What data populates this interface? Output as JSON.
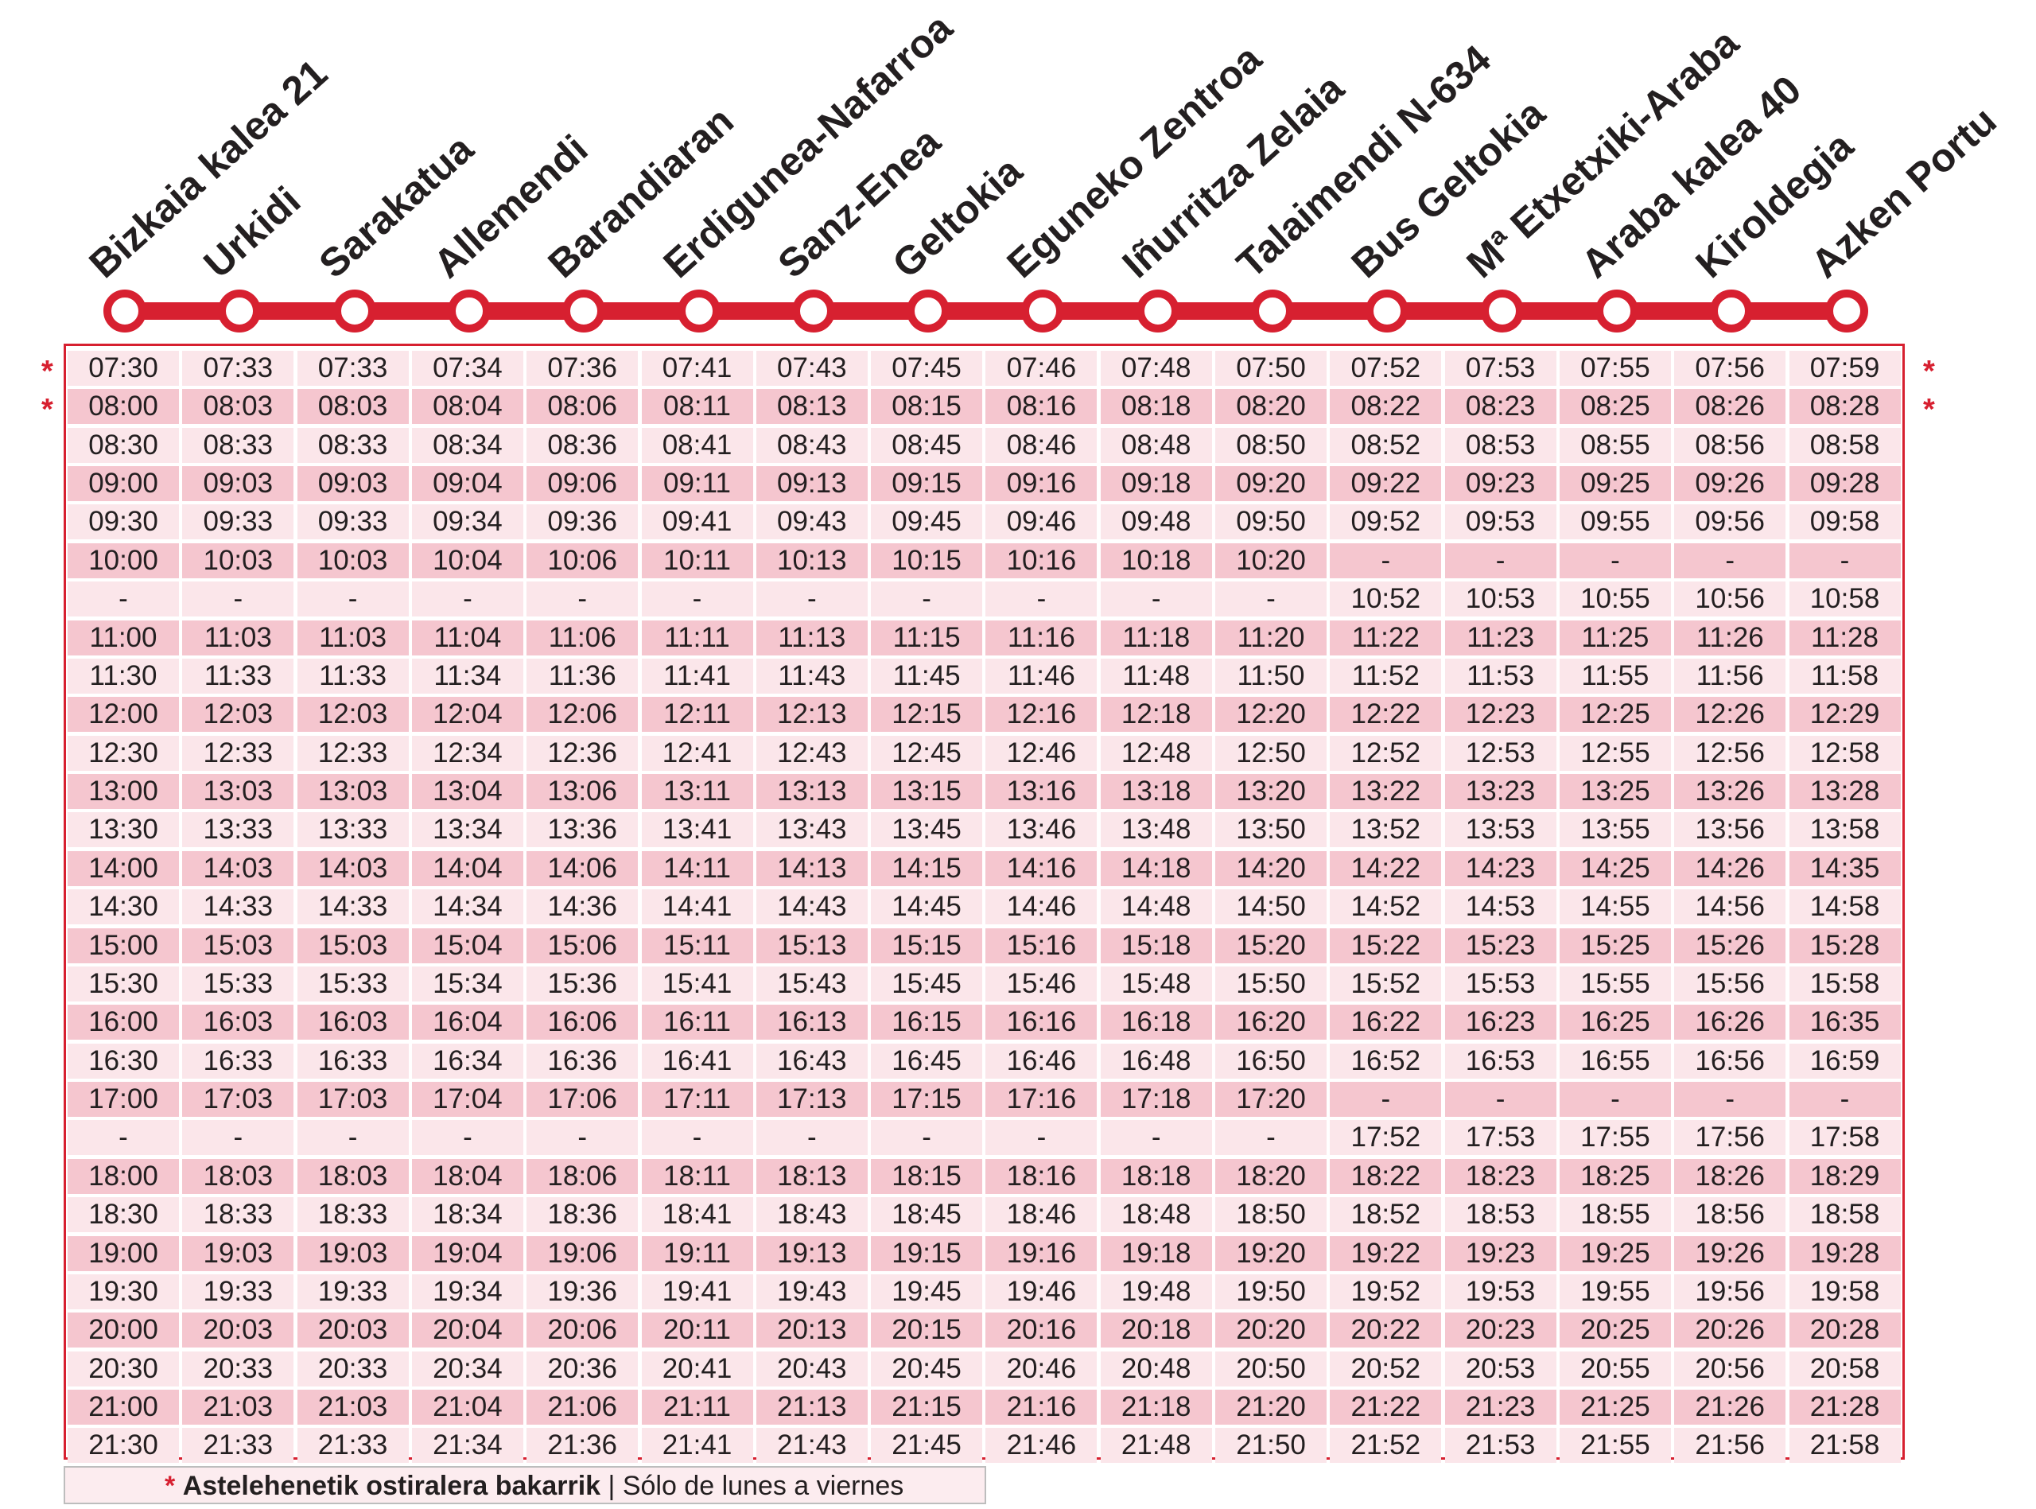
{
  "stops": [
    "Bizkaia kalea 21",
    "Urkidi",
    "Sarakatua",
    "Allemendi",
    "Barandiaran",
    "Erdigunea-Nafarroa",
    "Sanz-Enea",
    "Geltokia",
    "Eguneko Zentroa",
    "Iñurritza Zelaia",
    "Talaimendi N-634",
    "Bus Geltokia",
    "Mª Etxetxiki-Araba",
    "Araba kalea 40",
    "Kiroldegia",
    "Azken Portu"
  ],
  "timetable": {
    "weekday_only_marker": "*",
    "rows": [
      {
        "weekday_only": true,
        "times": [
          "07:30",
          "07:33",
          "07:33",
          "07:34",
          "07:36",
          "07:41",
          "07:43",
          "07:45",
          "07:46",
          "07:48",
          "07:50",
          "07:52",
          "07:53",
          "07:55",
          "07:56",
          "07:59"
        ]
      },
      {
        "weekday_only": true,
        "times": [
          "08:00",
          "08:03",
          "08:03",
          "08:04",
          "08:06",
          "08:11",
          "08:13",
          "08:15",
          "08:16",
          "08:18",
          "08:20",
          "08:22",
          "08:23",
          "08:25",
          "08:26",
          "08:28"
        ]
      },
      {
        "weekday_only": false,
        "times": [
          "08:30",
          "08:33",
          "08:33",
          "08:34",
          "08:36",
          "08:41",
          "08:43",
          "08:45",
          "08:46",
          "08:48",
          "08:50",
          "08:52",
          "08:53",
          "08:55",
          "08:56",
          "08:58"
        ]
      },
      {
        "weekday_only": false,
        "times": [
          "09:00",
          "09:03",
          "09:03",
          "09:04",
          "09:06",
          "09:11",
          "09:13",
          "09:15",
          "09:16",
          "09:18",
          "09:20",
          "09:22",
          "09:23",
          "09:25",
          "09:26",
          "09:28"
        ]
      },
      {
        "weekday_only": false,
        "times": [
          "09:30",
          "09:33",
          "09:33",
          "09:34",
          "09:36",
          "09:41",
          "09:43",
          "09:45",
          "09:46",
          "09:48",
          "09:50",
          "09:52",
          "09:53",
          "09:55",
          "09:56",
          "09:58"
        ]
      },
      {
        "weekday_only": false,
        "times": [
          "10:00",
          "10:03",
          "10:03",
          "10:04",
          "10:06",
          "10:11",
          "10:13",
          "10:15",
          "10:16",
          "10:18",
          "10:20",
          "-",
          "-",
          "-",
          "-",
          "-"
        ]
      },
      {
        "weekday_only": false,
        "times": [
          "-",
          "-",
          "-",
          "-",
          "-",
          "-",
          "-",
          "-",
          "-",
          "-",
          "-",
          "10:52",
          "10:53",
          "10:55",
          "10:56",
          "10:58"
        ]
      },
      {
        "weekday_only": false,
        "times": [
          "11:00",
          "11:03",
          "11:03",
          "11:04",
          "11:06",
          "11:11",
          "11:13",
          "11:15",
          "11:16",
          "11:18",
          "11:20",
          "11:22",
          "11:23",
          "11:25",
          "11:26",
          "11:28"
        ]
      },
      {
        "weekday_only": false,
        "times": [
          "11:30",
          "11:33",
          "11:33",
          "11:34",
          "11:36",
          "11:41",
          "11:43",
          "11:45",
          "11:46",
          "11:48",
          "11:50",
          "11:52",
          "11:53",
          "11:55",
          "11:56",
          "11:58"
        ]
      },
      {
        "weekday_only": false,
        "times": [
          "12:00",
          "12:03",
          "12:03",
          "12:04",
          "12:06",
          "12:11",
          "12:13",
          "12:15",
          "12:16",
          "12:18",
          "12:20",
          "12:22",
          "12:23",
          "12:25",
          "12:26",
          "12:29"
        ]
      },
      {
        "weekday_only": false,
        "times": [
          "12:30",
          "12:33",
          "12:33",
          "12:34",
          "12:36",
          "12:41",
          "12:43",
          "12:45",
          "12:46",
          "12:48",
          "12:50",
          "12:52",
          "12:53",
          "12:55",
          "12:56",
          "12:58"
        ]
      },
      {
        "weekday_only": false,
        "times": [
          "13:00",
          "13:03",
          "13:03",
          "13:04",
          "13:06",
          "13:11",
          "13:13",
          "13:15",
          "13:16",
          "13:18",
          "13:20",
          "13:22",
          "13:23",
          "13:25",
          "13:26",
          "13:28"
        ]
      },
      {
        "weekday_only": false,
        "times": [
          "13:30",
          "13:33",
          "13:33",
          "13:34",
          "13:36",
          "13:41",
          "13:43",
          "13:45",
          "13:46",
          "13:48",
          "13:50",
          "13:52",
          "13:53",
          "13:55",
          "13:56",
          "13:58"
        ]
      },
      {
        "weekday_only": false,
        "times": [
          "14:00",
          "14:03",
          "14:03",
          "14:04",
          "14:06",
          "14:11",
          "14:13",
          "14:15",
          "14:16",
          "14:18",
          "14:20",
          "14:22",
          "14:23",
          "14:25",
          "14:26",
          "14:35"
        ]
      },
      {
        "weekday_only": false,
        "times": [
          "14:30",
          "14:33",
          "14:33",
          "14:34",
          "14:36",
          "14:41",
          "14:43",
          "14:45",
          "14:46",
          "14:48",
          "14:50",
          "14:52",
          "14:53",
          "14:55",
          "14:56",
          "14:58"
        ]
      },
      {
        "weekday_only": false,
        "times": [
          "15:00",
          "15:03",
          "15:03",
          "15:04",
          "15:06",
          "15:11",
          "15:13",
          "15:15",
          "15:16",
          "15:18",
          "15:20",
          "15:22",
          "15:23",
          "15:25",
          "15:26",
          "15:28"
        ]
      },
      {
        "weekday_only": false,
        "times": [
          "15:30",
          "15:33",
          "15:33",
          "15:34",
          "15:36",
          "15:41",
          "15:43",
          "15:45",
          "15:46",
          "15:48",
          "15:50",
          "15:52",
          "15:53",
          "15:55",
          "15:56",
          "15:58"
        ]
      },
      {
        "weekday_only": false,
        "times": [
          "16:00",
          "16:03",
          "16:03",
          "16:04",
          "16:06",
          "16:11",
          "16:13",
          "16:15",
          "16:16",
          "16:18",
          "16:20",
          "16:22",
          "16:23",
          "16:25",
          "16:26",
          "16:35"
        ]
      },
      {
        "weekday_only": false,
        "times": [
          "16:30",
          "16:33",
          "16:33",
          "16:34",
          "16:36",
          "16:41",
          "16:43",
          "16:45",
          "16:46",
          "16:48",
          "16:50",
          "16:52",
          "16:53",
          "16:55",
          "16:56",
          "16:59"
        ]
      },
      {
        "weekday_only": false,
        "times": [
          "17:00",
          "17:03",
          "17:03",
          "17:04",
          "17:06",
          "17:11",
          "17:13",
          "17:15",
          "17:16",
          "17:18",
          "17:20",
          "-",
          "-",
          "-",
          "-",
          "-"
        ]
      },
      {
        "weekday_only": false,
        "times": [
          "-",
          "-",
          "-",
          "-",
          "-",
          "-",
          "-",
          "-",
          "-",
          "-",
          "-",
          "17:52",
          "17:53",
          "17:55",
          "17:56",
          "17:58"
        ]
      },
      {
        "weekday_only": false,
        "times": [
          "18:00",
          "18:03",
          "18:03",
          "18:04",
          "18:06",
          "18:11",
          "18:13",
          "18:15",
          "18:16",
          "18:18",
          "18:20",
          "18:22",
          "18:23",
          "18:25",
          "18:26",
          "18:29"
        ]
      },
      {
        "weekday_only": false,
        "times": [
          "18:30",
          "18:33",
          "18:33",
          "18:34",
          "18:36",
          "18:41",
          "18:43",
          "18:45",
          "18:46",
          "18:48",
          "18:50",
          "18:52",
          "18:53",
          "18:55",
          "18:56",
          "18:58"
        ]
      },
      {
        "weekday_only": false,
        "times": [
          "19:00",
          "19:03",
          "19:03",
          "19:04",
          "19:06",
          "19:11",
          "19:13",
          "19:15",
          "19:16",
          "19:18",
          "19:20",
          "19:22",
          "19:23",
          "19:25",
          "19:26",
          "19:28"
        ]
      },
      {
        "weekday_only": false,
        "times": [
          "19:30",
          "19:33",
          "19:33",
          "19:34",
          "19:36",
          "19:41",
          "19:43",
          "19:45",
          "19:46",
          "19:48",
          "19:50",
          "19:52",
          "19:53",
          "19:55",
          "19:56",
          "19:58"
        ]
      },
      {
        "weekday_only": false,
        "times": [
          "20:00",
          "20:03",
          "20:03",
          "20:04",
          "20:06",
          "20:11",
          "20:13",
          "20:15",
          "20:16",
          "20:18",
          "20:20",
          "20:22",
          "20:23",
          "20:25",
          "20:26",
          "20:28"
        ]
      },
      {
        "weekday_only": false,
        "times": [
          "20:30",
          "20:33",
          "20:33",
          "20:34",
          "20:36",
          "20:41",
          "20:43",
          "20:45",
          "20:46",
          "20:48",
          "20:50",
          "20:52",
          "20:53",
          "20:55",
          "20:56",
          "20:58"
        ]
      },
      {
        "weekday_only": false,
        "times": [
          "21:00",
          "21:03",
          "21:03",
          "21:04",
          "21:06",
          "21:11",
          "21:13",
          "21:15",
          "21:16",
          "21:18",
          "21:20",
          "21:22",
          "21:23",
          "21:25",
          "21:26",
          "21:28"
        ]
      },
      {
        "weekday_only": false,
        "times": [
          "21:30",
          "21:33",
          "21:33",
          "21:34",
          "21:36",
          "21:41",
          "21:43",
          "21:45",
          "21:46",
          "21:48",
          "21:50",
          "21:52",
          "21:53",
          "21:55",
          "21:56",
          "21:58"
        ]
      }
    ]
  },
  "footnote": {
    "marker": "*",
    "text_eu": "Astelehenetik ostiralera bakarrik",
    "separator": "|",
    "text_es": "Sólo de lunes a viernes"
  },
  "colors": {
    "accent_red": "#d72030",
    "row_light": "#fbe6ea",
    "row_dark": "#f5c6cf",
    "text": "#231f20"
  }
}
